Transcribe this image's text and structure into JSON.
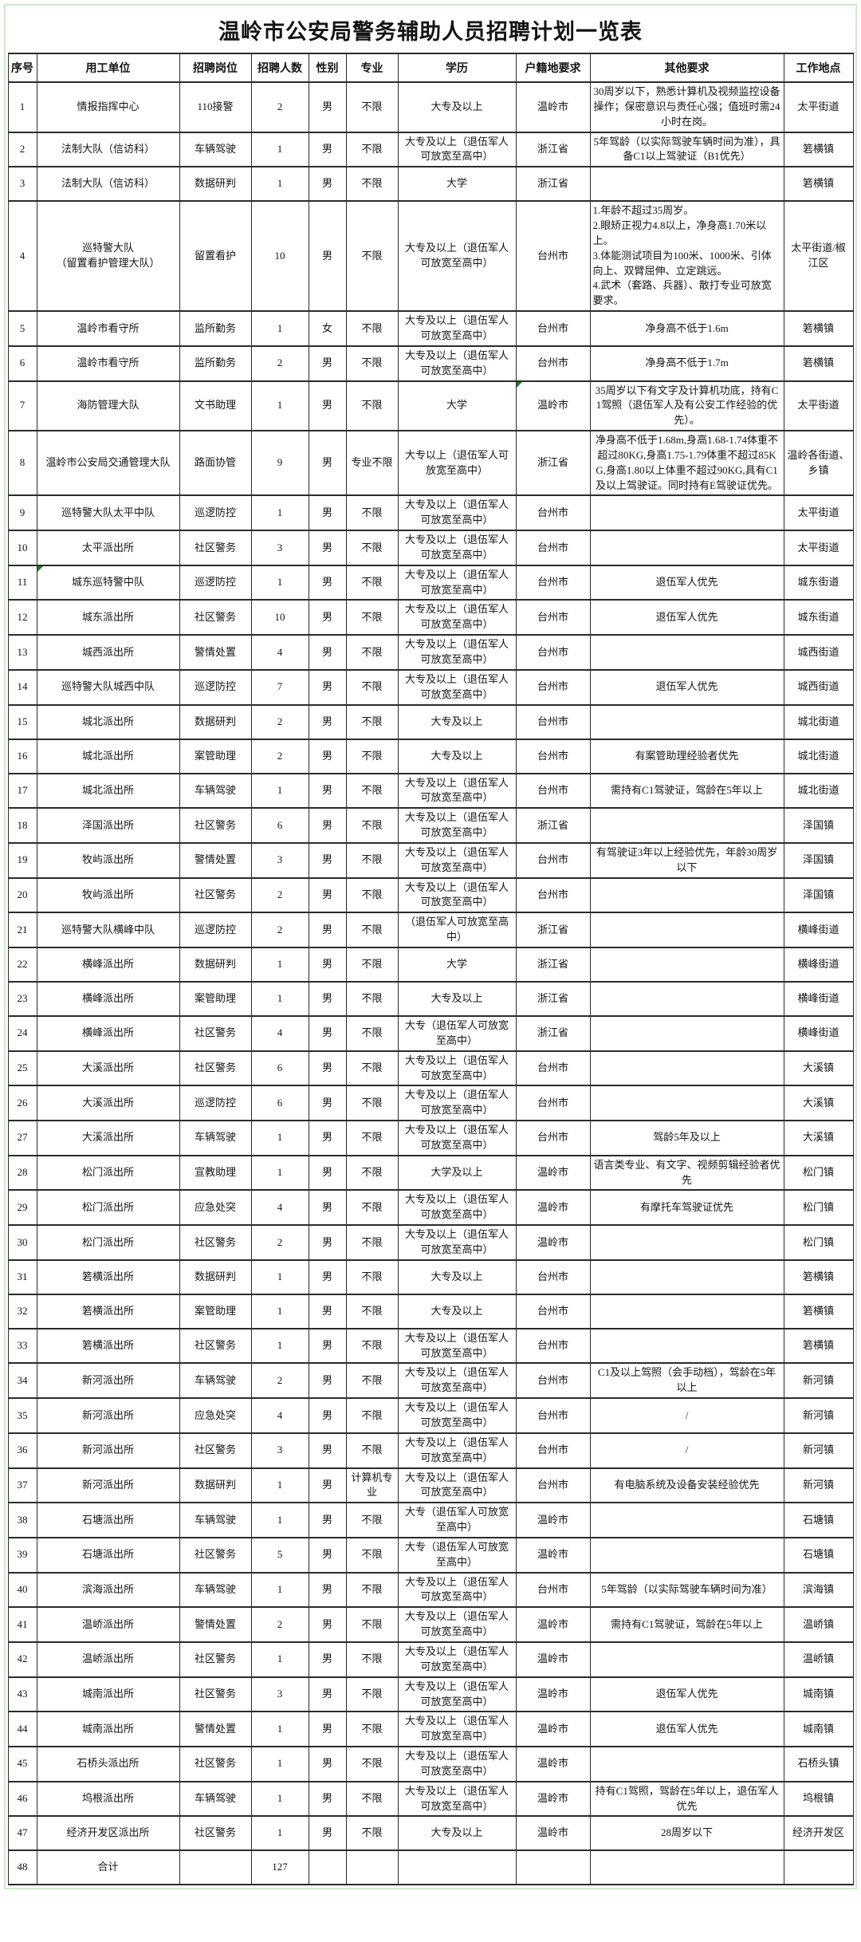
{
  "page": {
    "title": "温岭市公安局警务辅助人员招聘计划一览表"
  },
  "accent_colors": {
    "frame_green": "#cfe8cc",
    "error_marker_green": "#1e7a1e",
    "border": "#2b2b2b"
  },
  "table": {
    "column_keys": [
      "no",
      "unit",
      "position",
      "count",
      "gender",
      "major",
      "education",
      "household",
      "requirements",
      "location"
    ],
    "columns": [
      "序号",
      "用工单位",
      "招聘岗位",
      "招聘人数",
      "性别",
      "专业",
      "学历",
      "户籍地要求",
      "其他要求",
      "工作地点"
    ],
    "markers": [
      {
        "row": 7,
        "col": "household"
      },
      {
        "row": 11,
        "col": "unit"
      }
    ],
    "rows": [
      {
        "no": "1",
        "unit": "情报指挥中心",
        "position": "110接警",
        "count": "2",
        "gender": "男",
        "major": "不限",
        "education": "大专及以上",
        "household": "温岭市",
        "requirements": "30周岁以下，熟悉计算机及视频监控设备操作；保密意识与责任心强；值班时需24小时在岗。",
        "location": "太平街道"
      },
      {
        "no": "2",
        "unit": "法制大队（信访科）",
        "position": "车辆驾驶",
        "count": "1",
        "gender": "男",
        "major": "不限",
        "education": "大专及以上（退伍军人可放宽至高中）",
        "household": "浙江省",
        "requirements": "5年驾龄（以实际驾驶车辆时间为准），具备C1以上驾驶证（B1优先）",
        "location": "箬横镇"
      },
      {
        "no": "3",
        "unit": "法制大队（信访科）",
        "position": "数据研判",
        "count": "1",
        "gender": "男",
        "major": "不限",
        "education": "大学",
        "household": "浙江省",
        "requirements": "",
        "location": "箬横镇"
      },
      {
        "no": "4",
        "unit": "巡特警大队\n（留置看护管理大队）",
        "position": "留置看护",
        "count": "10",
        "gender": "男",
        "major": "不限",
        "education": "大专及以上（退伍军人可放宽至高中）",
        "household": "台州市",
        "requirements": "1.年龄不超过35周岁。\n2.眼矫正视力4.8以上，净身高1.70米以上。\n3.体能测试项目为100米、1000米、引体向上、双臂屈伸、立定跳远。\n4.武术（套路、兵器）、散打专业可放宽要求。",
        "location": "太平街道/椒江区"
      },
      {
        "no": "5",
        "unit": "温岭市看守所",
        "position": "监所勤务",
        "count": "1",
        "gender": "女",
        "major": "不限",
        "education": "大专及以上（退伍军人可放宽至高中）",
        "household": "台州市",
        "requirements": "净身高不低于1.6m",
        "location": "箬横镇"
      },
      {
        "no": "6",
        "unit": "温岭市看守所",
        "position": "监所勤务",
        "count": "2",
        "gender": "男",
        "major": "不限",
        "education": "大专及以上（退伍军人可放宽至高中）",
        "household": "台州市",
        "requirements": "净身高不低于1.7m",
        "location": "箬横镇"
      },
      {
        "no": "7",
        "unit": "海防管理大队",
        "position": "文书助理",
        "count": "1",
        "gender": "男",
        "major": "不限",
        "education": "大学",
        "household": "温岭市",
        "requirements": "35周岁以下有文字及计算机功底，持有C1驾照（退伍军人及有公安工作经验的优先）。",
        "location": "太平街道"
      },
      {
        "no": "8",
        "unit": "温岭市公安局交通管理大队",
        "position": "路面协管",
        "count": "9",
        "gender": "男",
        "major": "专业不限",
        "education": "大专以上（退伍军人可放宽至高中）",
        "household": "浙江省",
        "requirements": "净身高不低于1.68m,身高1.68-1.74体重不超过80KG,身高1.75-1.79体重不超过85KG,身高1.80以上体重不超过90KG,具有C1及以上驾驶证。同时持有E驾驶证优先。",
        "location": "温岭各街道、乡镇"
      },
      {
        "no": "9",
        "unit": "巡特警大队太平中队",
        "position": "巡逻防控",
        "count": "1",
        "gender": "男",
        "major": "不限",
        "education": "大专及以上（退伍军人可放宽至高中）",
        "household": "台州市",
        "requirements": "",
        "location": "太平街道"
      },
      {
        "no": "10",
        "unit": "太平派出所",
        "position": "社区警务",
        "count": "3",
        "gender": "男",
        "major": "不限",
        "education": "大专及以上（退伍军人可放宽至高中）",
        "household": "台州市",
        "requirements": "",
        "location": "太平街道"
      },
      {
        "no": "11",
        "unit": "城东巡特警中队",
        "position": "巡逻防控",
        "count": "1",
        "gender": "男",
        "major": "不限",
        "education": "大专及以上（退伍军人可放宽至高中）",
        "household": "台州市",
        "requirements": "退伍军人优先",
        "location": "城东街道"
      },
      {
        "no": "12",
        "unit": "城东派出所",
        "position": "社区警务",
        "count": "10",
        "gender": "男",
        "major": "不限",
        "education": "大专及以上（退伍军人可放宽至高中）",
        "household": "台州市",
        "requirements": "退伍军人优先",
        "location": "城东街道"
      },
      {
        "no": "13",
        "unit": "城西派出所",
        "position": "警情处置",
        "count": "4",
        "gender": "男",
        "major": "不限",
        "education": "大专及以上（退伍军人可放宽至高中）",
        "household": "台州市",
        "requirements": "",
        "location": "城西街道"
      },
      {
        "no": "14",
        "unit": "巡特警大队城西中队",
        "position": "巡逻防控",
        "count": "7",
        "gender": "男",
        "major": "不限",
        "education": "大专及以上（退伍军人可放宽至高中）",
        "household": "台州市",
        "requirements": "退伍军人优先",
        "location": "城西街道"
      },
      {
        "no": "15",
        "unit": "城北派出所",
        "position": "数据研判",
        "count": "2",
        "gender": "男",
        "major": "不限",
        "education": "大专及以上",
        "household": "台州市",
        "requirements": "",
        "location": "城北街道"
      },
      {
        "no": "16",
        "unit": "城北派出所",
        "position": "案管助理",
        "count": "2",
        "gender": "男",
        "major": "不限",
        "education": "大专及以上",
        "household": "台州市",
        "requirements": "有案管助理经验者优先",
        "location": "城北街道"
      },
      {
        "no": "17",
        "unit": "城北派出所",
        "position": "车辆驾驶",
        "count": "1",
        "gender": "男",
        "major": "不限",
        "education": "大专及以上（退伍军人可放宽至高中）",
        "household": "台州市",
        "requirements": "需持有C1驾驶证，驾龄在5年以上",
        "location": "城北街道"
      },
      {
        "no": "18",
        "unit": "泽国派出所",
        "position": "社区警务",
        "count": "6",
        "gender": "男",
        "major": "不限",
        "education": "大专及以上（退伍军人可放宽至高中）",
        "household": "浙江省",
        "requirements": "",
        "location": "泽国镇"
      },
      {
        "no": "19",
        "unit": "牧屿派出所",
        "position": "警情处置",
        "count": "3",
        "gender": "男",
        "major": "不限",
        "education": "大专及以上（退伍军人可放宽至高中）",
        "household": "台州市",
        "requirements": "有驾驶证3年以上经验优先，年龄30周岁以下",
        "location": "泽国镇"
      },
      {
        "no": "20",
        "unit": "牧屿派出所",
        "position": "社区警务",
        "count": "2",
        "gender": "男",
        "major": "不限",
        "education": "大专及以上（退伍军人可放宽至高中）",
        "household": "台州市",
        "requirements": "",
        "location": "泽国镇"
      },
      {
        "no": "21",
        "unit": "巡特警大队横峰中队",
        "position": "巡逻防控",
        "count": "2",
        "gender": "男",
        "major": "不限",
        "education": "（退伍军人可放宽至高中）",
        "household": "浙江省",
        "requirements": "",
        "location": "横峰街道"
      },
      {
        "no": "22",
        "unit": "横峰派出所",
        "position": "数据研判",
        "count": "1",
        "gender": "男",
        "major": "不限",
        "education": "大学",
        "household": "浙江省",
        "requirements": "",
        "location": "横峰街道"
      },
      {
        "no": "23",
        "unit": "横峰派出所",
        "position": "案管助理",
        "count": "1",
        "gender": "男",
        "major": "不限",
        "education": "大专及以上",
        "household": "浙江省",
        "requirements": "",
        "location": "横峰街道"
      },
      {
        "no": "24",
        "unit": "横峰派出所",
        "position": "社区警务",
        "count": "4",
        "gender": "男",
        "major": "不限",
        "education": "大专（退伍军人可放宽至高中）",
        "household": "浙江省",
        "requirements": "",
        "location": "横峰街道"
      },
      {
        "no": "25",
        "unit": "大溪派出所",
        "position": "社区警务",
        "count": "6",
        "gender": "男",
        "major": "不限",
        "education": "大专及以上（退伍军人可放宽至高中）",
        "household": "台州市",
        "requirements": "",
        "location": "大溪镇"
      },
      {
        "no": "26",
        "unit": "大溪派出所",
        "position": "巡逻防控",
        "count": "6",
        "gender": "男",
        "major": "不限",
        "education": "大专及以上（退伍军人可放宽至高中）",
        "household": "台州市",
        "requirements": "",
        "location": "大溪镇"
      },
      {
        "no": "27",
        "unit": "大溪派出所",
        "position": "车辆驾驶",
        "count": "1",
        "gender": "男",
        "major": "不限",
        "education": "大专及以上（退伍军人可放宽至高中）",
        "household": "台州市",
        "requirements": "驾龄5年及以上",
        "location": "大溪镇"
      },
      {
        "no": "28",
        "unit": "松门派出所",
        "position": "宣教助理",
        "count": "1",
        "gender": "男",
        "major": "不限",
        "education": "大学及以上",
        "household": "温岭市",
        "requirements": "语言类专业、有文字、视频剪辑经验者优先",
        "location": "松门镇"
      },
      {
        "no": "29",
        "unit": "松门派出所",
        "position": "应急处突",
        "count": "4",
        "gender": "男",
        "major": "不限",
        "education": "大专及以上（退伍军人可放宽至高中）",
        "household": "温岭市",
        "requirements": "有摩托车驾驶证优先",
        "location": "松门镇"
      },
      {
        "no": "30",
        "unit": "松门派出所",
        "position": "社区警务",
        "count": "2",
        "gender": "男",
        "major": "不限",
        "education": "大专及以上（退伍军人可放宽至高中）",
        "household": "温岭市",
        "requirements": "",
        "location": "松门镇"
      },
      {
        "no": "31",
        "unit": "箬横派出所",
        "position": "数据研判",
        "count": "1",
        "gender": "男",
        "major": "不限",
        "education": "大专及以上",
        "household": "台州市",
        "requirements": "",
        "location": "箬横镇"
      },
      {
        "no": "32",
        "unit": "箬横派出所",
        "position": "案管助理",
        "count": "1",
        "gender": "男",
        "major": "不限",
        "education": "大专及以上",
        "household": "台州市",
        "requirements": "",
        "location": "箬横镇"
      },
      {
        "no": "33",
        "unit": "箬横派出所",
        "position": "社区警务",
        "count": "1",
        "gender": "男",
        "major": "不限",
        "education": "大专及以上（退伍军人可放宽至高中）",
        "household": "台州市",
        "requirements": "",
        "location": "箬横镇"
      },
      {
        "no": "34",
        "unit": "新河派出所",
        "position": "车辆驾驶",
        "count": "2",
        "gender": "男",
        "major": "不限",
        "education": "大专及以上（退伍军人可放宽至高中）",
        "household": "台州市",
        "requirements": "C1及以上驾照（会手动档），驾龄在5年以上",
        "location": "新河镇"
      },
      {
        "no": "35",
        "unit": "新河派出所",
        "position": "应急处突",
        "count": "4",
        "gender": "男",
        "major": "不限",
        "education": "大专及以上（退伍军人可放宽至高中）",
        "household": "台州市",
        "requirements": "/",
        "location": "新河镇"
      },
      {
        "no": "36",
        "unit": "新河派出所",
        "position": "社区警务",
        "count": "3",
        "gender": "男",
        "major": "不限",
        "education": "大专及以上（退伍军人可放宽至高中）",
        "household": "台州市",
        "requirements": "/",
        "location": "新河镇"
      },
      {
        "no": "37",
        "unit": "新河派出所",
        "position": "数据研判",
        "count": "1",
        "gender": "男",
        "major": "计算机专业",
        "education": "大专及以上（退伍军人可放宽至高中）",
        "household": "台州市",
        "requirements": "有电脑系统及设备安装经验优先",
        "location": "新河镇"
      },
      {
        "no": "38",
        "unit": "石塘派出所",
        "position": "车辆驾驶",
        "count": "1",
        "gender": "男",
        "major": "不限",
        "education": "大专（退伍军人可放宽至高中）",
        "household": "温岭市",
        "requirements": "",
        "location": "石塘镇"
      },
      {
        "no": "39",
        "unit": "石塘派出所",
        "position": "社区警务",
        "count": "5",
        "gender": "男",
        "major": "不限",
        "education": "大专（退伍军人可放宽至高中）",
        "household": "温岭市",
        "requirements": "",
        "location": "石塘镇"
      },
      {
        "no": "40",
        "unit": "滨海派出所",
        "position": "车辆驾驶",
        "count": "1",
        "gender": "男",
        "major": "不限",
        "education": "大专及以上（退伍军人可放宽至高中）",
        "household": "台州市",
        "requirements": "5年驾龄（以实际驾驶车辆时间为准）",
        "location": "滨海镇"
      },
      {
        "no": "41",
        "unit": "温峤派出所",
        "position": "警情处置",
        "count": "2",
        "gender": "男",
        "major": "不限",
        "education": "大专及以上（退伍军人可放宽至高中）",
        "household": "温岭市",
        "requirements": "需持有C1驾驶证，驾龄在5年以上",
        "location": "温峤镇"
      },
      {
        "no": "42",
        "unit": "温峤派出所",
        "position": "社区警务",
        "count": "1",
        "gender": "男",
        "major": "不限",
        "education": "大专及以上（退伍军人可放宽至高中）",
        "household": "温岭市",
        "requirements": "",
        "location": "温峤镇"
      },
      {
        "no": "43",
        "unit": "城南派出所",
        "position": "社区警务",
        "count": "3",
        "gender": "男",
        "major": "不限",
        "education": "大专及以上（退伍军人可放宽至高中）",
        "household": "温岭市",
        "requirements": "退伍军人优先",
        "location": "城南镇"
      },
      {
        "no": "44",
        "unit": "城南派出所",
        "position": "警情处置",
        "count": "1",
        "gender": "男",
        "major": "不限",
        "education": "大专及以上（退伍军人可放宽至高中）",
        "household": "温岭市",
        "requirements": "退伍军人优先",
        "location": "城南镇"
      },
      {
        "no": "45",
        "unit": "石桥头派出所",
        "position": "社区警务",
        "count": "1",
        "gender": "男",
        "major": "不限",
        "education": "大专及以上（退伍军人可放宽至高中）",
        "household": "温岭市",
        "requirements": "",
        "location": "石桥头镇"
      },
      {
        "no": "46",
        "unit": "坞根派出所",
        "position": "车辆驾驶",
        "count": "1",
        "gender": "男",
        "major": "不限",
        "education": "大专及以上（退伍军人可放宽至高中）",
        "household": "温岭市",
        "requirements": "持有C1驾照，驾龄在5年以上，退伍军人优先",
        "location": "坞根镇"
      },
      {
        "no": "47",
        "unit": "经济开发区派出所",
        "position": "社区警务",
        "count": "1",
        "gender": "男",
        "major": "不限",
        "education": "大专及以上",
        "household": "温岭市",
        "requirements": "28周岁以下",
        "location": "经济开发区"
      },
      {
        "no": "48",
        "unit": "合计",
        "position": "",
        "count": "127",
        "gender": "",
        "major": "",
        "education": "",
        "household": "",
        "requirements": "",
        "location": ""
      }
    ]
  }
}
